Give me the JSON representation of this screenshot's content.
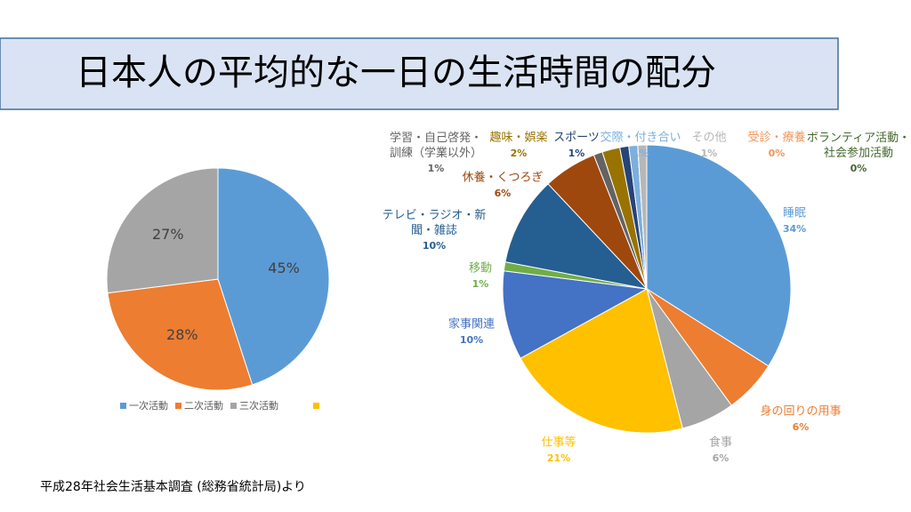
{
  "title": "日本人の平均的な一日の生活時間の配分",
  "source": "平成28年社会生活基本調査 (総務省統計局)より",
  "chart_data": [
    {
      "type": "pie",
      "categories": [
        "一次活動",
        "二次活動",
        "三次活動"
      ],
      "values": [
        45,
        28,
        27
      ],
      "value_labels": [
        "45%",
        "28%",
        "27%"
      ],
      "colors": [
        "#5b9bd5",
        "#ed7d31",
        "#a5a5a5"
      ],
      "legend": "bottom"
    },
    {
      "type": "pie",
      "categories": [
        "睡眠",
        "身の回りの用事",
        "食事",
        "仕事等",
        "家事関連",
        "移動",
        "テレビ・ラジオ・新\n聞・雑誌",
        "休養・くつろぎ",
        "学習・自己啓発・\n訓練（学業以外）",
        "趣味・娯楽",
        "スポーツ",
        "交際・付き合い",
        "ボランティア活動・\n社会参加活動",
        "受診・療養",
        "その他"
      ],
      "values": [
        34,
        6,
        6,
        21,
        10,
        1,
        10,
        6,
        1,
        2,
        1,
        1,
        0,
        0,
        1
      ],
      "value_labels": [
        "34%",
        "6%",
        "6%",
        "21%",
        "10%",
        "1%",
        "10%",
        "6%",
        "1%",
        "2%",
        "1%",
        "1%",
        "0%",
        "0%",
        "1%"
      ],
      "colors": [
        "#5b9bd5",
        "#ed7d31",
        "#a5a5a5",
        "#ffc000",
        "#4472c4",
        "#70ad47",
        "#255e91",
        "#9e480e",
        "#636363",
        "#997300",
        "#264478",
        "#7cafdd",
        "#43682b",
        "#f1975a",
        "#b7b7b7"
      ]
    }
  ]
}
